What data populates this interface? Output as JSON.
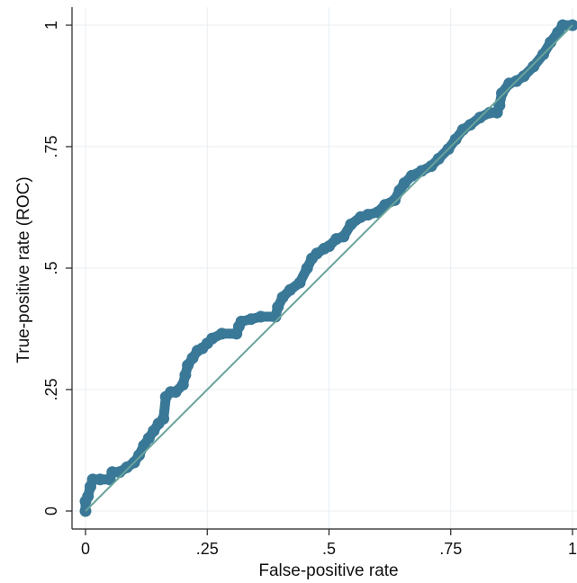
{
  "chart_data": {
    "type": "line",
    "title": "",
    "xlabel": "False-positive rate",
    "ylabel": "True-positive rate (ROC)",
    "xlim": [
      0,
      1
    ],
    "ylim": [
      0,
      1
    ],
    "grid": true,
    "x_ticks": [
      0,
      0.25,
      0.5,
      0.75,
      1
    ],
    "x_tick_labels": [
      "0",
      ".25",
      ".5",
      ".75",
      "1"
    ],
    "y_ticks": [
      0,
      0.25,
      0.5,
      0.75,
      1
    ],
    "y_tick_labels": [
      "0",
      ".25",
      ".5",
      ".75",
      "1"
    ],
    "colors": {
      "roc": "#3a7897",
      "reference": "#69a49a",
      "grid": "#e8eef2",
      "axis": "#222222"
    },
    "series": [
      {
        "type": "line-with-markers",
        "points": [
          [
            0.0,
            0.0
          ],
          [
            0.0,
            0.02
          ],
          [
            0.005,
            0.03
          ],
          [
            0.01,
            0.05
          ],
          [
            0.015,
            0.065
          ],
          [
            0.03,
            0.065
          ],
          [
            0.05,
            0.065
          ],
          [
            0.055,
            0.08
          ],
          [
            0.07,
            0.08
          ],
          [
            0.085,
            0.09
          ],
          [
            0.1,
            0.1
          ],
          [
            0.11,
            0.115
          ],
          [
            0.12,
            0.135
          ],
          [
            0.13,
            0.15
          ],
          [
            0.14,
            0.165
          ],
          [
            0.15,
            0.18
          ],
          [
            0.16,
            0.19
          ],
          [
            0.165,
            0.235
          ],
          [
            0.175,
            0.245
          ],
          [
            0.185,
            0.245
          ],
          [
            0.2,
            0.26
          ],
          [
            0.205,
            0.28
          ],
          [
            0.21,
            0.3
          ],
          [
            0.22,
            0.315
          ],
          [
            0.23,
            0.33
          ],
          [
            0.24,
            0.335
          ],
          [
            0.25,
            0.345
          ],
          [
            0.26,
            0.355
          ],
          [
            0.28,
            0.365
          ],
          [
            0.31,
            0.365
          ],
          [
            0.315,
            0.38
          ],
          [
            0.32,
            0.39
          ],
          [
            0.34,
            0.395
          ],
          [
            0.36,
            0.4
          ],
          [
            0.39,
            0.4
          ],
          [
            0.395,
            0.42
          ],
          [
            0.405,
            0.44
          ],
          [
            0.42,
            0.455
          ],
          [
            0.44,
            0.47
          ],
          [
            0.455,
            0.5
          ],
          [
            0.465,
            0.52
          ],
          [
            0.475,
            0.53
          ],
          [
            0.49,
            0.54
          ],
          [
            0.5,
            0.545
          ],
          [
            0.515,
            0.56
          ],
          [
            0.53,
            0.565
          ],
          [
            0.545,
            0.59
          ],
          [
            0.565,
            0.605
          ],
          [
            0.58,
            0.61
          ],
          [
            0.6,
            0.615
          ],
          [
            0.615,
            0.63
          ],
          [
            0.635,
            0.64
          ],
          [
            0.645,
            0.66
          ],
          [
            0.655,
            0.675
          ],
          [
            0.67,
            0.69
          ],
          [
            0.69,
            0.7
          ],
          [
            0.71,
            0.71
          ],
          [
            0.725,
            0.725
          ],
          [
            0.745,
            0.745
          ],
          [
            0.76,
            0.765
          ],
          [
            0.775,
            0.785
          ],
          [
            0.79,
            0.795
          ],
          [
            0.81,
            0.81
          ],
          [
            0.83,
            0.82
          ],
          [
            0.845,
            0.82
          ],
          [
            0.85,
            0.835
          ],
          [
            0.855,
            0.86
          ],
          [
            0.87,
            0.88
          ],
          [
            0.885,
            0.885
          ],
          [
            0.9,
            0.895
          ],
          [
            0.92,
            0.915
          ],
          [
            0.94,
            0.94
          ],
          [
            0.955,
            0.965
          ],
          [
            0.97,
            0.985
          ],
          [
            0.98,
            1.0
          ],
          [
            1.0,
            1.0
          ]
        ]
      },
      {
        "type": "reference-line",
        "points": [
          [
            0,
            0
          ],
          [
            1,
            1
          ]
        ]
      }
    ]
  }
}
